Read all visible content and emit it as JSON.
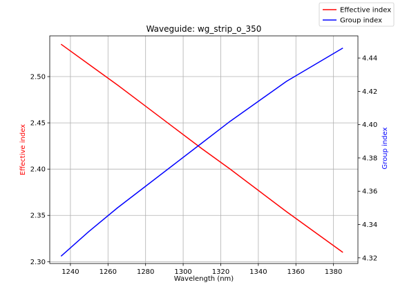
{
  "chart_data": {
    "type": "line",
    "title": "Waveguide: wg_strip_o_350",
    "xlabel": "Wavelength (nm)",
    "ylabel_left": "Effective index",
    "ylabel_right": "Group index",
    "grid": true,
    "legend_placement": "top-right-outside",
    "xlim": [
      1229,
      1393
    ],
    "ylim_left": [
      2.298,
      2.544
    ],
    "ylim_right": [
      4.3166,
      4.4533
    ],
    "x_ticks": [
      1240,
      1260,
      1280,
      1300,
      1320,
      1340,
      1360,
      1380
    ],
    "y_ticks_left": [
      2.3,
      2.35,
      2.4,
      2.45,
      2.5
    ],
    "y_ticks_right": [
      4.32,
      4.34,
      4.36,
      4.38,
      4.4,
      4.42,
      4.44
    ],
    "x_tick_labels": [
      "1240",
      "1260",
      "1280",
      "1300",
      "1320",
      "1340",
      "1360",
      "1380"
    ],
    "y_tick_labels_left": [
      "2.30",
      "2.35",
      "2.40",
      "2.45",
      "2.50"
    ],
    "y_tick_labels_right": [
      "4.32",
      "4.34",
      "4.36",
      "4.38",
      "4.40",
      "4.42",
      "4.44"
    ],
    "series": [
      {
        "name": "Effective index",
        "axis": "left",
        "color": "#ff0000",
        "x": [
          1235,
          1250,
          1265,
          1280,
          1295,
          1310,
          1325,
          1340,
          1355,
          1370,
          1385
        ],
        "y": [
          2.535,
          2.513,
          2.491,
          2.468,
          2.445,
          2.422,
          2.4,
          2.377,
          2.354,
          2.332,
          2.31
        ]
      },
      {
        "name": "Group index",
        "axis": "right",
        "color": "#0000ff",
        "x": [
          1235,
          1250,
          1265,
          1280,
          1295,
          1310,
          1325,
          1340,
          1355,
          1370,
          1385
        ],
        "y": [
          4.321,
          4.336,
          4.35,
          4.363,
          4.376,
          4.389,
          4.402,
          4.414,
          4.426,
          4.436,
          4.446
        ]
      }
    ]
  }
}
